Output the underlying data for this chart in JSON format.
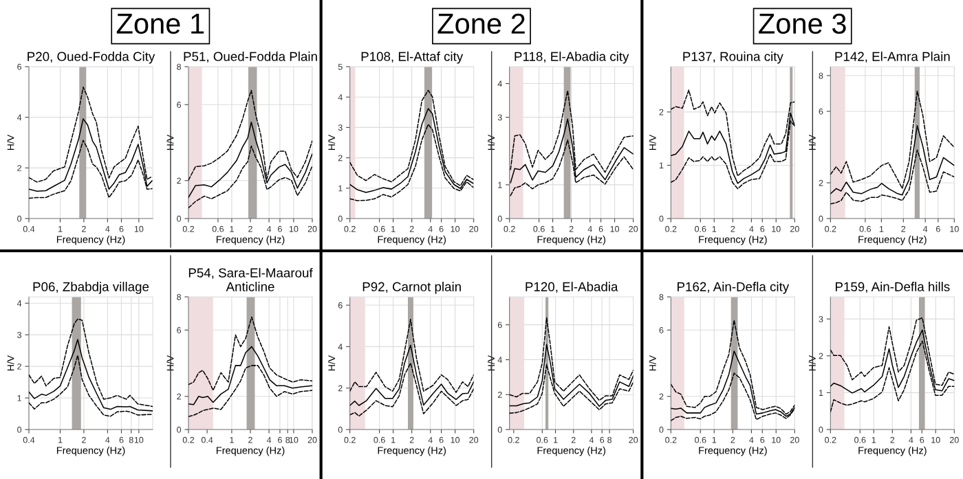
{
  "chart_data": [
    {
      "type": "line",
      "title": "P20, Oued-Fodda City",
      "xlabel": "Frequency (Hz)",
      "ylabel": "H/V",
      "annotations": [
        "Zone 1"
      ],
      "log": "x",
      "grid": true,
      "xlim": [
        0.4,
        15
      ],
      "ylim": [
        0,
        6
      ],
      "xticks": [
        0.4,
        1,
        2,
        4,
        6,
        10
      ],
      "yticks": [
        0,
        2,
        4,
        6
      ],
      "x": [
        0.4,
        0.506,
        0.655,
        0.82,
        1.14,
        1.37,
        1.72,
        1.96,
        2.23,
        2.58,
        2.88,
        3.34,
        4.17,
        4.84,
        5.62,
        6.75,
        8.1,
        9.8,
        11.4,
        12.7,
        14.7
      ],
      "bands": [
        {
          "axis": "x",
          "from": 1.75,
          "to": 2.14,
          "color": "#aaa6a3"
        }
      ],
      "series": [
        {
          "color": "#000000",
          "line_style": "solid",
          "values": [
            1.16,
            1.08,
            1.1,
            1.27,
            1.51,
            2.15,
            3.15,
            3.94,
            3.7,
            3.06,
            2.82,
            2.15,
            1.16,
            1.4,
            1.73,
            1.82,
            2.27,
            2.93,
            2.04,
            1.27,
            1.49
          ]
        },
        {
          "color": "#000000",
          "line_style": "dashed",
          "values": [
            1.62,
            1.44,
            1.55,
            1.88,
            2.04,
            3.04,
            4.25,
            5.19,
            4.8,
            4.14,
            3.81,
            2.71,
            1.6,
            2.04,
            2.2,
            2.38,
            3.04,
            3.65,
            2.38,
            1.55,
            1.66
          ]
        },
        {
          "color": "#000000",
          "line_style": "dashed",
          "values": [
            0.8,
            0.83,
            0.83,
            0.96,
            1.1,
            1.49,
            2.49,
            3.09,
            2.76,
            2.15,
            2.04,
            1.71,
            0.83,
            1.1,
            1.44,
            1.49,
            1.71,
            2.32,
            1.71,
            1.16,
            1.18
          ]
        }
      ]
    },
    {
      "type": "line",
      "title": "P51, Oued-Fodda Plain",
      "xlabel": "Frequency (Hz)",
      "ylabel": "H/V",
      "log": "x",
      "grid": true,
      "xlim": [
        0.2,
        20
      ],
      "ylim": [
        0,
        8
      ],
      "xticks": [
        0.2,
        0.6,
        1,
        2,
        4,
        6,
        10,
        20
      ],
      "yticks": [
        0,
        2,
        6,
        8
      ],
      "x": [
        0.2,
        0.26,
        0.36,
        0.47,
        0.63,
        0.85,
        1.2,
        1.49,
        1.81,
        2.07,
        2.46,
        2.95,
        3.7,
        4.3,
        5.8,
        7.3,
        9.2,
        11.5,
        15.5,
        20
      ],
      "bands": [
        {
          "axis": "x",
          "from": 0.2,
          "to": 0.33,
          "color": "#f0dde0"
        },
        {
          "axis": "x",
          "from": 1.85,
          "to": 2.55,
          "color": "#aaa6a3"
        }
      ],
      "series": [
        {
          "color": "#000000",
          "line_style": "solid",
          "values": [
            1.11,
            1.74,
            1.77,
            1.67,
            2.02,
            2.43,
            3.06,
            3.76,
            4.24,
            5.08,
            4.1,
            3.27,
            1.88,
            2.29,
            2.71,
            2.85,
            2.43,
            1.6,
            2.43,
            3.41
          ]
        },
        {
          "color": "#000000",
          "line_style": "dashed",
          "values": [
            2.02,
            2.74,
            2.78,
            2.92,
            3.2,
            3.55,
            4.38,
            5.22,
            6.19,
            6.75,
            5.42,
            4.38,
            2.09,
            2.99,
            3.55,
            3.55,
            2.57,
            2.16,
            2.99,
            4.1
          ]
        },
        {
          "color": "#000000",
          "line_style": "dashed",
          "values": [
            0.56,
            0.9,
            1.18,
            1.04,
            1.25,
            1.46,
            2.02,
            2.64,
            2.99,
            3.82,
            3.2,
            2.71,
            1.53,
            1.67,
            2.04,
            2.16,
            2.02,
            1.21,
            1.88,
            2.78
          ]
        }
      ]
    },
    {
      "type": "line",
      "title": "P108, El-Attaf city",
      "xlabel": "Frequency (Hz)",
      "ylabel": "H/V",
      "annotations": [
        "Zone 2"
      ],
      "log": "x",
      "grid": true,
      "xlim": [
        0.2,
        20
      ],
      "ylim": [
        0,
        5
      ],
      "xticks": [
        0.2,
        0.6,
        1,
        2,
        4,
        6,
        10,
        20
      ],
      "yticks": [
        0,
        1,
        2,
        3,
        4,
        5
      ],
      "x": [
        0.2,
        0.264,
        0.364,
        0.5,
        0.69,
        0.94,
        1.31,
        1.73,
        2.29,
        2.91,
        3.68,
        4.3,
        5.47,
        6.9,
        9.6,
        12.2,
        15.4,
        19.6
      ],
      "bands": [
        {
          "axis": "x",
          "from": 0.2,
          "to": 0.244,
          "color": "#f0dde0"
        },
        {
          "axis": "x",
          "from": 3.19,
          "to": 4.25,
          "color": "#aaa6a3"
        }
      ],
      "series": [
        {
          "color": "#000000",
          "line_style": "solid",
          "values": [
            1.12,
            0.95,
            0.86,
            0.93,
            1.02,
            0.97,
            1.16,
            1.38,
            2.2,
            3.1,
            3.62,
            3.45,
            2.41,
            1.55,
            1.12,
            0.99,
            1.29,
            1.16
          ]
        },
        {
          "color": "#000000",
          "line_style": "dashed",
          "values": [
            1.85,
            1.42,
            1.25,
            1.45,
            1.31,
            1.21,
            1.45,
            1.64,
            2.59,
            3.88,
            4.22,
            4.01,
            2.76,
            1.72,
            1.21,
            1.08,
            1.42,
            1.29
          ]
        },
        {
          "color": "#000000",
          "line_style": "dashed",
          "values": [
            0.65,
            0.59,
            0.6,
            0.65,
            0.79,
            0.71,
            0.91,
            1.12,
            1.72,
            2.59,
            3.1,
            2.93,
            2.07,
            1.34,
            0.99,
            0.91,
            1.21,
            1.03
          ]
        }
      ]
    },
    {
      "type": "line",
      "title": "P118, El-Abadia city",
      "xlabel": "Frequency (Hz)",
      "ylabel": "H/V",
      "log": "x",
      "grid": true,
      "xlim": [
        0.2,
        20
      ],
      "ylim": [
        0,
        4.5
      ],
      "xticks": [
        0.2,
        0.6,
        1,
        2,
        4,
        6,
        10,
        20
      ],
      "yticks": [
        0,
        1,
        3,
        4
      ],
      "x": [
        0.208,
        0.243,
        0.296,
        0.36,
        0.47,
        0.58,
        0.76,
        1.0,
        1.26,
        1.53,
        1.74,
        2.09,
        2.35,
        3.2,
        4.57,
        7.0,
        10.5,
        14.2,
        20
      ],
      "bands": [
        {
          "axis": "x",
          "from": 0.2,
          "to": 0.333,
          "color": "#f0dde0"
        },
        {
          "axis": "x",
          "from": 1.51,
          "to": 1.94,
          "color": "#aaa6a3"
        }
      ],
      "series": [
        {
          "color": "#000000",
          "line_style": "solid",
          "values": [
            1.06,
            1.48,
            1.45,
            1.6,
            1.14,
            1.41,
            1.37,
            1.56,
            1.98,
            2.52,
            2.95,
            2.14,
            1.22,
            1.45,
            1.6,
            1.15,
            1.72,
            2.1,
            1.91
          ]
        },
        {
          "color": "#000000",
          "line_style": "dashed",
          "values": [
            1.45,
            2.45,
            2.48,
            2.22,
            1.52,
            2.02,
            1.75,
            1.98,
            2.52,
            3.29,
            3.79,
            2.75,
            1.45,
            1.75,
            1.91,
            1.37,
            1.98,
            2.41,
            2.45
          ]
        },
        {
          "color": "#000000",
          "line_style": "dashed",
          "values": [
            0.68,
            0.91,
            0.95,
            1.06,
            0.88,
            1.0,
            1.06,
            1.18,
            1.52,
            1.98,
            2.33,
            1.68,
            1.06,
            1.22,
            1.29,
            1.02,
            1.52,
            1.83,
            1.45
          ]
        }
      ]
    },
    {
      "type": "line",
      "title": "P137, Rouina city",
      "xlabel": "Frequency (Hz)",
      "ylabel": "H/V",
      "annotations": [
        "Zone 3"
      ],
      "log": "x",
      "grid": true,
      "xlim": [
        0.2,
        20
      ],
      "ylim": [
        0,
        2.85
      ],
      "xticks": [
        0.2,
        0.6,
        1,
        2,
        4,
        6,
        10,
        20
      ],
      "yticks": [
        0,
        1,
        2
      ],
      "x": [
        0.2,
        0.24,
        0.306,
        0.39,
        0.47,
        0.59,
        0.66,
        0.78,
        0.91,
        1.02,
        1.23,
        1.56,
        1.97,
        2.4,
        3.0,
        3.96,
        5.4,
        6.6,
        8.0,
        9.3,
        12.2,
        14.3,
        17.1,
        20
      ],
      "bands": [
        {
          "axis": "x",
          "from": 0.2,
          "to": 0.326,
          "color": "#f0dde0"
        },
        {
          "axis": "x",
          "from": 16.7,
          "to": 18.5,
          "color": "#aaa6a3"
        }
      ],
      "series": [
        {
          "color": "#000000",
          "line_style": "solid",
          "values": [
            1.18,
            1.21,
            1.35,
            1.64,
            1.5,
            1.5,
            1.62,
            1.4,
            1.55,
            1.47,
            1.64,
            1.4,
            0.88,
            0.66,
            0.75,
            0.82,
            0.92,
            1.11,
            1.38,
            1.21,
            1.23,
            1.26,
            1.98,
            1.74
          ]
        },
        {
          "color": "#000000",
          "line_style": "dashed",
          "values": [
            2.05,
            2.1,
            2.07,
            2.41,
            2.05,
            2.1,
            2.19,
            1.93,
            2.1,
            1.98,
            2.17,
            1.98,
            1.16,
            0.8,
            0.9,
            0.99,
            1.14,
            1.4,
            1.59,
            1.4,
            1.4,
            1.59,
            2.17,
            2.19
          ]
        },
        {
          "color": "#000000",
          "line_style": "dashed",
          "values": [
            0.68,
            0.73,
            0.92,
            1.14,
            1.07,
            1.09,
            1.16,
            1.07,
            1.16,
            1.09,
            1.16,
            1.02,
            0.68,
            0.56,
            0.66,
            0.73,
            0.75,
            0.97,
            1.21,
            1.07,
            1.07,
            1.11,
            1.83,
            1.74
          ]
        }
      ]
    },
    {
      "type": "line",
      "title": "P142, El-Amra Plain",
      "xlabel": "Frequency (Hz)",
      "ylabel": "H/V",
      "log": "x",
      "grid": true,
      "xlim": [
        0.2,
        10
      ],
      "ylim": [
        0,
        8.5
      ],
      "xticks": [
        0.2,
        0.6,
        1,
        2,
        4,
        6,
        10
      ],
      "yticks": [
        0,
        2,
        6,
        8
      ],
      "x": [
        0.2,
        0.24,
        0.28,
        0.33,
        0.41,
        0.53,
        0.71,
        0.88,
        1.01,
        1.25,
        1.67,
        1.93,
        2.4,
        3.1,
        3.7,
        4.6,
        5.7,
        7.1,
        10
      ],
      "bands": [
        {
          "axis": "x",
          "from": 0.2,
          "to": 0.318,
          "color": "#f0dde0"
        },
        {
          "axis": "x",
          "from": 2.86,
          "to": 3.35,
          "color": "#aaa6a3"
        }
      ],
      "series": [
        {
          "color": "#000000",
          "line_style": "solid",
          "values": [
            1.39,
            1.68,
            1.54,
            2.04,
            1.47,
            1.39,
            1.64,
            1.75,
            1.97,
            1.68,
            1.39,
            1.32,
            2.18,
            5.2,
            4.05,
            2.18,
            2.33,
            3.41,
            2.97
          ]
        },
        {
          "color": "#000000",
          "line_style": "dashed",
          "values": [
            2.47,
            2.9,
            2.54,
            3.19,
            2.04,
            2.18,
            2.4,
            2.76,
            2.97,
            3.12,
            2.18,
            1.68,
            3.19,
            7.14,
            5.78,
            3.19,
            3.41,
            4.63,
            3.98
          ]
        },
        {
          "color": "#000000",
          "line_style": "dashed",
          "values": [
            0.82,
            0.89,
            1.01,
            1.47,
            1.03,
            0.96,
            1.18,
            1.18,
            1.32,
            1.25,
            1.11,
            1.01,
            1.61,
            3.84,
            2.9,
            1.47,
            1.54,
            2.61,
            2.33
          ]
        }
      ]
    },
    {
      "type": "line",
      "title": "P06, Zbabdja village",
      "xlabel": "Frequency (Hz)",
      "ylabel": "H/V",
      "log": "x",
      "grid": true,
      "xlim": [
        0.4,
        15
      ],
      "ylim": [
        0,
        4.2
      ],
      "xticks": [
        0.4,
        1,
        2,
        4,
        6,
        8,
        10
      ],
      "yticks": [
        0,
        1,
        2,
        3,
        4
      ],
      "x": [
        0.4,
        0.47,
        0.58,
        0.66,
        0.83,
        1.0,
        1.24,
        1.51,
        1.67,
        1.9,
        2.32,
        2.93,
        3.57,
        4.36,
        5.3,
        6.9,
        7.7,
        9.7,
        15
      ],
      "bands": [
        {
          "axis": "x",
          "from": 1.41,
          "to": 1.84,
          "color": "#aaa6a3"
        }
      ],
      "series": [
        {
          "color": "#000000",
          "line_style": "solid",
          "values": [
            1.19,
            0.98,
            1.12,
            1.08,
            1.21,
            1.38,
            1.96,
            2.5,
            2.85,
            2.27,
            1.65,
            1.12,
            0.69,
            0.64,
            0.73,
            0.72,
            0.73,
            0.62,
            0.59
          ]
        },
        {
          "color": "#000000",
          "line_style": "dashed",
          "values": [
            1.73,
            1.46,
            1.69,
            1.38,
            1.62,
            1.65,
            2.65,
            3.35,
            3.5,
            3.46,
            2.42,
            1.46,
            0.96,
            1.0,
            1.08,
            0.96,
            1.08,
            0.81,
            0.73
          ]
        },
        {
          "color": "#000000",
          "line_style": "dashed",
          "values": [
            0.85,
            0.65,
            0.85,
            0.85,
            0.96,
            1.12,
            1.35,
            1.96,
            2.35,
            1.58,
            1.08,
            0.73,
            0.46,
            0.42,
            0.56,
            0.58,
            0.56,
            0.46,
            0.48
          ]
        }
      ]
    },
    {
      "type": "line",
      "title": "P54, Sara-El-Maarouf\nAnticline",
      "xlabel": "Frequency (Hz)",
      "ylabel": "H/V",
      "log": "x",
      "grid": true,
      "xlim": [
        0.2,
        20
      ],
      "ylim": [
        0,
        8
      ],
      "xticks": [
        0.2,
        0.4,
        1,
        2,
        4,
        6,
        8,
        10,
        20
      ],
      "yticks": [
        0,
        2,
        6,
        8
      ],
      "x": [
        0.2,
        0.242,
        0.292,
        0.34,
        0.41,
        0.5,
        0.67,
        0.88,
        1.15,
        1.39,
        1.68,
        2.1,
        2.64,
        3.3,
        4.1,
        5.3,
        7.1,
        9.6,
        13,
        20
      ],
      "bands": [
        {
          "axis": "x",
          "from": 0.2,
          "to": 0.5,
          "color": "#f0dde0"
        },
        {
          "axis": "x",
          "from": 1.74,
          "to": 2.36,
          "color": "#aaa6a3"
        }
      ],
      "series": [
        {
          "color": "#000000",
          "line_style": "solid",
          "values": [
            1.54,
            1.5,
            2.0,
            1.93,
            2.0,
            1.64,
            2.14,
            2.43,
            3.86,
            3.86,
            4.64,
            5.0,
            4.43,
            3.71,
            3.0,
            2.64,
            2.64,
            2.5,
            2.57,
            2.64
          ]
        },
        {
          "color": "#000000",
          "line_style": "dashed",
          "values": [
            2.71,
            2.86,
            3.43,
            3.57,
            3.07,
            2.36,
            3.43,
            2.86,
            5.71,
            5.0,
            5.5,
            6.79,
            5.57,
            4.71,
            3.71,
            3.29,
            3.07,
            2.86,
            3.0,
            2.93
          ]
        },
        {
          "color": "#000000",
          "line_style": "dashed",
          "values": [
            0.79,
            0.86,
            1.0,
            1.14,
            1.21,
            1.29,
            1.21,
            1.79,
            2.43,
            2.93,
            3.71,
            3.86,
            3.86,
            3.29,
            2.5,
            2.0,
            2.29,
            2.14,
            2.29,
            2.36
          ]
        }
      ]
    },
    {
      "type": "line",
      "title": "P92, Carnot plain",
      "xlabel": "Frequency (Hz)",
      "ylabel": "H/V",
      "log": "x",
      "grid": true,
      "xlim": [
        0.2,
        20
      ],
      "ylim": [
        0,
        6.4
      ],
      "xticks": [
        0.2,
        0.6,
        1,
        2,
        4,
        6,
        10,
        20
      ],
      "yticks": [
        0,
        2,
        4,
        6
      ],
      "x": [
        0.2,
        0.24,
        0.28,
        0.37,
        0.53,
        0.74,
        0.98,
        1.25,
        1.53,
        1.91,
        2.38,
        3.1,
        4.4,
        6.0,
        7.6,
        10.4,
        13.2,
        16.2,
        20
      ],
      "bands": [
        {
          "axis": "x",
          "from": 0.2,
          "to": 0.352,
          "color": "#f0dde0"
        },
        {
          "axis": "x",
          "from": 1.73,
          "to": 2.12,
          "color": "#aaa6a3"
        }
      ],
      "series": [
        {
          "color": "#000000",
          "line_style": "solid",
          "values": [
            1.16,
            1.37,
            1.16,
            1.39,
            1.98,
            1.5,
            1.5,
            1.96,
            3.21,
            4.07,
            2.64,
            1.18,
            1.73,
            2.19,
            1.75,
            1.45,
            1.73,
            1.75,
            2.3
          ]
        },
        {
          "color": "#000000",
          "line_style": "dashed",
          "values": [
            1.85,
            2.3,
            2.07,
            2.07,
            2.76,
            2.07,
            1.85,
            2.41,
            3.78,
            5.32,
            3.44,
            1.85,
            2.13,
            2.64,
            2.41,
            1.79,
            2.3,
            2.07,
            2.64
          ]
        },
        {
          "color": "#000000",
          "line_style": "dashed",
          "values": [
            0.71,
            0.82,
            0.65,
            0.93,
            1.39,
            1.16,
            1.1,
            1.62,
            2.64,
            3.21,
            2.13,
            0.76,
            1.28,
            1.85,
            1.56,
            1.16,
            1.39,
            1.45,
            1.96
          ]
        }
      ]
    },
    {
      "type": "line",
      "title": "P120, El-Abadia",
      "xlabel": "Frequency (Hz)",
      "ylabel": "H/V",
      "log": "x",
      "grid": true,
      "xlim": [
        0.17,
        20
      ],
      "ylim": [
        0,
        7.6
      ],
      "xticks": [
        0.2,
        0.6,
        1,
        2,
        4,
        6,
        8,
        20
      ],
      "yticks": [
        0,
        2,
        4,
        6
      ],
      "x": [
        0.17,
        0.223,
        0.28,
        0.37,
        0.5,
        0.6,
        0.71,
        0.81,
        0.97,
        1.36,
        2.52,
        3.7,
        5.4,
        6.9,
        8.9,
        11.8,
        16.9,
        20
      ],
      "bands": [
        {
          "axis": "x",
          "from": 0.17,
          "to": 0.3,
          "color": "#f0dde0"
        },
        {
          "axis": "x",
          "from": 0.68,
          "to": 0.76,
          "color": "#aaa6a3"
        }
      ],
      "series": [
        {
          "color": "#000000",
          "line_style": "solid",
          "values": [
            1.36,
            1.36,
            1.47,
            1.53,
            1.87,
            2.8,
            4.87,
            3.93,
            2.33,
            1.73,
            2.6,
            2.07,
            1.33,
            1.67,
            1.73,
            2.73,
            2.47,
            3.07
          ]
        },
        {
          "color": "#000000",
          "line_style": "dashed",
          "values": [
            2.0,
            1.87,
            2.07,
            2.07,
            2.73,
            3.8,
            6.4,
            5.0,
            2.73,
            2.2,
            3.13,
            2.33,
            1.67,
            1.93,
            1.93,
            3.13,
            2.87,
            3.4
          ]
        },
        {
          "color": "#000000",
          "line_style": "dashed",
          "values": [
            0.93,
            0.97,
            1.07,
            1.24,
            1.47,
            2.07,
            3.73,
            3.0,
            2.07,
            1.33,
            2.2,
            1.67,
            1.13,
            1.47,
            1.53,
            2.33,
            2.2,
            2.73
          ]
        }
      ]
    },
    {
      "type": "line",
      "title": "P162, Ain-Defla city",
      "xlabel": "Frequency (Hz)",
      "ylabel": "H/V",
      "log": "x",
      "grid": true,
      "xlim": [
        0.2,
        20
      ],
      "ylim": [
        0,
        8
      ],
      "xticks": [
        0.2,
        0.6,
        1,
        2,
        4,
        6,
        10,
        20
      ],
      "yticks": [
        0,
        2,
        6,
        8
      ],
      "x": [
        0.2,
        0.24,
        0.29,
        0.36,
        0.49,
        0.6,
        0.7,
        0.85,
        1.07,
        1.4,
        1.73,
        2.1,
        2.56,
        3.2,
        3.8,
        4.8,
        6.1,
        8.0,
        9.8,
        11.9,
        14.5,
        16.9,
        20
      ],
      "bands": [
        {
          "axis": "x",
          "from": 0.2,
          "to": 0.329,
          "color": "#f0dde0"
        },
        {
          "axis": "x",
          "from": 1.87,
          "to": 2.4,
          "color": "#aaa6a3"
        }
      ],
      "series": [
        {
          "color": "#000000",
          "line_style": "solid",
          "values": [
            1.27,
            1.23,
            1.29,
            1.0,
            1.0,
            1.0,
            1.33,
            1.47,
            1.6,
            2.4,
            3.33,
            4.73,
            4.0,
            3.2,
            2.67,
            0.93,
            1.0,
            1.13,
            1.2,
            1.07,
            0.8,
            0.93,
            1.33
          ]
        },
        {
          "color": "#000000",
          "line_style": "dashed",
          "values": [
            2.73,
            2.27,
            2.13,
            1.4,
            1.33,
            1.6,
            2.0,
            2.0,
            2.27,
            3.6,
            4.53,
            6.6,
            4.93,
            4.13,
            3.33,
            1.33,
            1.2,
            1.33,
            1.4,
            1.27,
            0.93,
            1.07,
            1.47
          ]
        },
        {
          "color": "#000000",
          "line_style": "dashed",
          "values": [
            0.53,
            0.73,
            0.8,
            0.67,
            0.73,
            0.64,
            0.8,
            0.87,
            1.07,
            1.73,
            2.4,
            3.4,
            3.13,
            2.4,
            1.8,
            0.6,
            0.8,
            0.93,
            1.0,
            0.87,
            0.67,
            0.87,
            1.27
          ]
        }
      ]
    },
    {
      "type": "line",
      "title": "P159, Ain-Defla hills",
      "xlabel": "Frequency (Hz)",
      "ylabel": "H/V",
      "log": "x",
      "grid": true,
      "xlim": [
        0.2,
        20
      ],
      "ylim": [
        0,
        3.6
      ],
      "xticks": [
        0.2,
        0.6,
        1,
        2,
        4,
        6,
        10,
        20
      ],
      "yticks": [
        0,
        1,
        2,
        3
      ],
      "x": [
        0.2,
        0.226,
        0.29,
        0.37,
        0.45,
        0.63,
        0.71,
        0.99,
        1.37,
        1.77,
        2.0,
        2.5,
        3.1,
        4.0,
        4.9,
        6.1,
        7.8,
        9.9,
        12.7,
        16.2,
        20
      ],
      "bands": [
        {
          "axis": "x",
          "from": 0.2,
          "to": 0.336,
          "color": "#f0dde0"
        },
        {
          "axis": "x",
          "from": 5.37,
          "to": 6.7,
          "color": "#aaa6a3"
        }
      ],
      "series": [
        {
          "color": "#000000",
          "line_style": "solid",
          "values": [
            1.17,
            1.26,
            1.19,
            1.08,
            0.99,
            1.11,
            1.02,
            1.2,
            1.44,
            2.19,
            1.74,
            1.14,
            1.44,
            1.98,
            2.37,
            2.7,
            1.8,
            1.08,
            1.05,
            1.38,
            1.33
          ]
        },
        {
          "color": "#000000",
          "line_style": "dashed",
          "values": [
            2.16,
            2.01,
            2.01,
            1.74,
            1.35,
            1.56,
            1.44,
            1.68,
            1.74,
            2.79,
            2.34,
            1.56,
            1.74,
            2.34,
            2.97,
            3.03,
            2.1,
            1.23,
            1.2,
            1.56,
            1.5
          ]
        },
        {
          "color": "#000000",
          "line_style": "dashed",
          "values": [
            0.48,
            0.81,
            0.72,
            0.66,
            0.69,
            0.78,
            0.75,
            0.84,
            1.02,
            1.68,
            1.35,
            0.78,
            1.08,
            1.65,
            2.1,
            2.4,
            1.62,
            0.93,
            0.93,
            1.17,
            1.17
          ]
        }
      ]
    }
  ]
}
